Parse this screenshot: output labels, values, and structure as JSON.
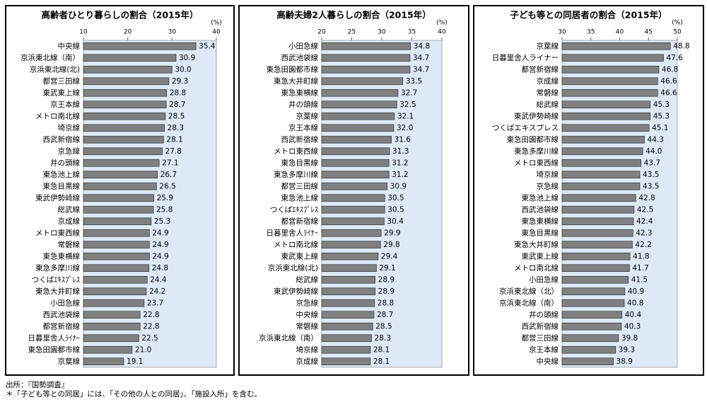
{
  "chart_data": [
    {
      "type": "bar",
      "orientation": "horizontal",
      "title": "高齢者ひとり暮らしの割合（2015年）",
      "unit": "(%)",
      "color": "#808080",
      "grid": false,
      "xlim": [
        10,
        40
      ],
      "xticks": [
        10,
        20,
        30,
        40
      ],
      "categories": [
        "中央線",
        "京浜東北線（南）",
        "京浜東北線(北)",
        "都営三田線",
        "東武東上線",
        "京王本線",
        "メトロ南北線",
        "埼京線",
        "西武新宿線",
        "京急線",
        "井の頭線",
        "東急池上線",
        "東急目黒線",
        "東武伊勢崎線",
        "総武線",
        "京成線",
        "メトロ東西線",
        "常磐線",
        "東急東横線",
        "東急多摩川線",
        "つくばｴｷｽﾌﾟﾚｽ",
        "東急大井町線",
        "小田急線",
        "西武池袋線",
        "都営新宿線",
        "日暮里舎人ﾗｲﾅｰ",
        "東急田園都市線",
        "京葉線"
      ],
      "values": [
        35.4,
        30.9,
        30.0,
        29.3,
        28.8,
        28.7,
        28.5,
        28.3,
        28.1,
        27.8,
        27.1,
        26.7,
        26.5,
        25.9,
        25.8,
        25.3,
        24.9,
        24.9,
        24.9,
        24.8,
        24.4,
        24.2,
        23.7,
        22.8,
        22.8,
        22.5,
        21.0,
        19.1
      ],
      "value_labels": [
        "35.4",
        "30.9",
        "30.0",
        "29.3",
        "28.8",
        "28.7",
        "28.5",
        "28.3",
        "28.1",
        "27.8",
        "27.1",
        "26.7",
        "26.5",
        "25.9",
        "25.8",
        "25.3",
        "24.9",
        "24.9",
        "24.9",
        "24.8",
        "24.4",
        "24.2",
        "23.7",
        "22.8",
        "22.8",
        "22.5",
        "21.0",
        "19.1"
      ]
    },
    {
      "type": "bar",
      "orientation": "horizontal",
      "title": "高齢夫婦2人暮らしの割合（2015年）",
      "unit": "(%)",
      "color": "#808080",
      "grid": false,
      "xlim": [
        20,
        40
      ],
      "xticks": [
        20,
        25,
        30,
        35,
        40
      ],
      "categories": [
        "小田急線",
        "西武池袋線",
        "東急田園都市線",
        "東急大井町線",
        "東急東横線",
        "井の頭線",
        "京葉線",
        "京王本線",
        "西武新宿線",
        "メトロ東西線",
        "東急目黒線",
        "東急多摩川線",
        "都営三田線",
        "東急池上線",
        "つくばｴｷｽﾌﾟﾚｽ",
        "都営新宿線",
        "日暮里舎人ﾗｲﾅｰ",
        "メトロ南北線",
        "東武東上線",
        "京浜東北線(北)",
        "総武線",
        "東武伊勢崎線",
        "京急線",
        "中央線",
        "常磐線",
        "京浜東北線（南）",
        "埼京線",
        "京成線"
      ],
      "values": [
        34.8,
        34.7,
        34.7,
        33.5,
        32.7,
        32.5,
        32.1,
        32.0,
        31.6,
        31.3,
        31.2,
        31.2,
        30.9,
        30.5,
        30.5,
        30.4,
        29.9,
        29.8,
        29.4,
        29.1,
        28.9,
        28.9,
        28.8,
        28.7,
        28.5,
        28.3,
        28.1,
        28.1
      ],
      "value_labels": [
        "34.8",
        "34.7",
        "34.7",
        "33.5",
        "32.7",
        "32.5",
        "32.1",
        "32.0",
        "31.6",
        "31.3",
        "31.2",
        "31.2",
        "30.9",
        "30.5",
        "30.5",
        "30.4",
        "29.9",
        "29.8",
        "29.4",
        "29.1",
        "28.9",
        "28.9",
        "28.8",
        "28.7",
        "28.5",
        "28.3",
        "28.1",
        "28.1"
      ]
    },
    {
      "type": "bar",
      "orientation": "horizontal",
      "title": "子ども等との同居者の割合（2015年）",
      "unit": "(%)",
      "color": "#808080",
      "grid": false,
      "xlim": [
        30,
        50
      ],
      "xticks": [
        30,
        35,
        40,
        45,
        50
      ],
      "categories": [
        "京葉線",
        "日暮里舎人ライナー",
        "都営新宿線",
        "京成線",
        "常磐線",
        "総武線",
        "東武伊勢崎線",
        "つくばエキスプレス",
        "東急田園都市線",
        "東急多摩川線",
        "メトロ東西線",
        "埼京線",
        "京急線",
        "東急池上線",
        "西武池袋線",
        "東急東横線",
        "東急目黒線",
        "東急大井町線",
        "東武東上線",
        "メトロ南北線",
        "小田急線",
        "京浜東北線（北）",
        "京浜東北線（南）",
        "井の頭線",
        "西武新宿線",
        "都営三田線",
        "京王本線",
        "中央線"
      ],
      "values": [
        48.8,
        47.6,
        46.8,
        46.6,
        46.6,
        45.3,
        45.3,
        45.1,
        44.3,
        44.0,
        43.7,
        43.5,
        43.5,
        42.8,
        42.5,
        42.4,
        42.3,
        42.2,
        41.8,
        41.7,
        41.5,
        40.9,
        40.8,
        40.4,
        40.3,
        39.8,
        39.3,
        38.9
      ],
      "value_labels": [
        "48.8",
        "47.6",
        "46.8",
        "46.6",
        "46.6",
        "45.3",
        "45.3",
        "45.1",
        "44.3",
        "44.0",
        "43.7",
        "43.5",
        "43.5",
        "42.8",
        "42.5",
        "42.4",
        "42.3",
        "42.2",
        "41.8",
        "41.7",
        "41.5",
        "40.9",
        "40.8",
        "40.4",
        "40.3",
        "39.8",
        "39.3",
        "38.9"
      ]
    }
  ],
  "notes": [
    "出所：『国勢調査』",
    "＊「子ども等との同居」には、「その他の人との同居」、「施設入所」を含む。"
  ]
}
